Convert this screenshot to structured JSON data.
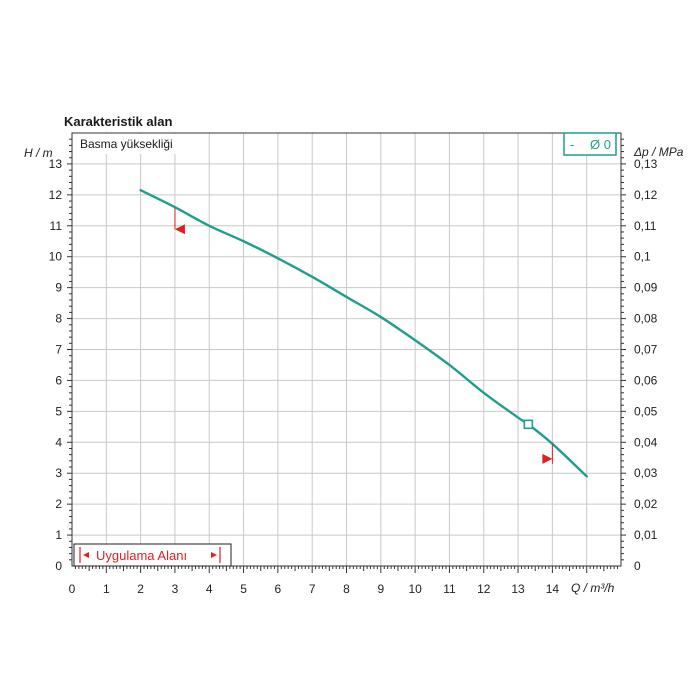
{
  "chart_data": {
    "type": "line",
    "title": "Karakteristik alan",
    "legend_label": "Basma yüksekliği",
    "xlabel": "Q / m³/h",
    "ylabel_left": "H / m",
    "ylabel_right": "Δp / MPa",
    "xlim": [
      0,
      16
    ],
    "ylim": [
      0,
      14
    ],
    "ylim_right": [
      0,
      0.14
    ],
    "x_ticks": [
      "0",
      "1",
      "2",
      "3",
      "4",
      "5",
      "6",
      "7",
      "8",
      "9",
      "10",
      "11",
      "12",
      "13",
      "14"
    ],
    "y_ticks": [
      "0",
      "1",
      "2",
      "3",
      "4",
      "5",
      "6",
      "7",
      "8",
      "9",
      "10",
      "11",
      "12",
      "13"
    ],
    "y_right_ticks": [
      "0",
      "0,01",
      "0,02",
      "0,03",
      "0,04",
      "0,05",
      "0,06",
      "0,07",
      "0,08",
      "0,09",
      "0,1",
      "0,11",
      "0,12",
      "0,13"
    ],
    "grid": true,
    "series": [
      {
        "name": "Ø 0",
        "color": "#1f9e8e",
        "x": [
          2,
          3,
          4,
          5,
          6,
          7,
          8,
          9,
          10,
          11,
          12,
          13,
          13.3,
          14,
          15
        ],
        "y": [
          12.15,
          11.6,
          11.0,
          10.5,
          9.95,
          9.35,
          8.7,
          8.05,
          7.3,
          6.5,
          5.6,
          4.8,
          4.58,
          3.95,
          2.9
        ]
      }
    ],
    "operating_point": {
      "x": 13.3,
      "y": 4.58
    },
    "application_range": {
      "label": "Uygulama Alanı",
      "q_min": 3,
      "q_max": 14,
      "h_at_min": 11.6,
      "h_at_max": 3.95,
      "marker_color": "#e02020"
    },
    "badge": {
      "dash": "-",
      "text": "Ø 0"
    }
  }
}
